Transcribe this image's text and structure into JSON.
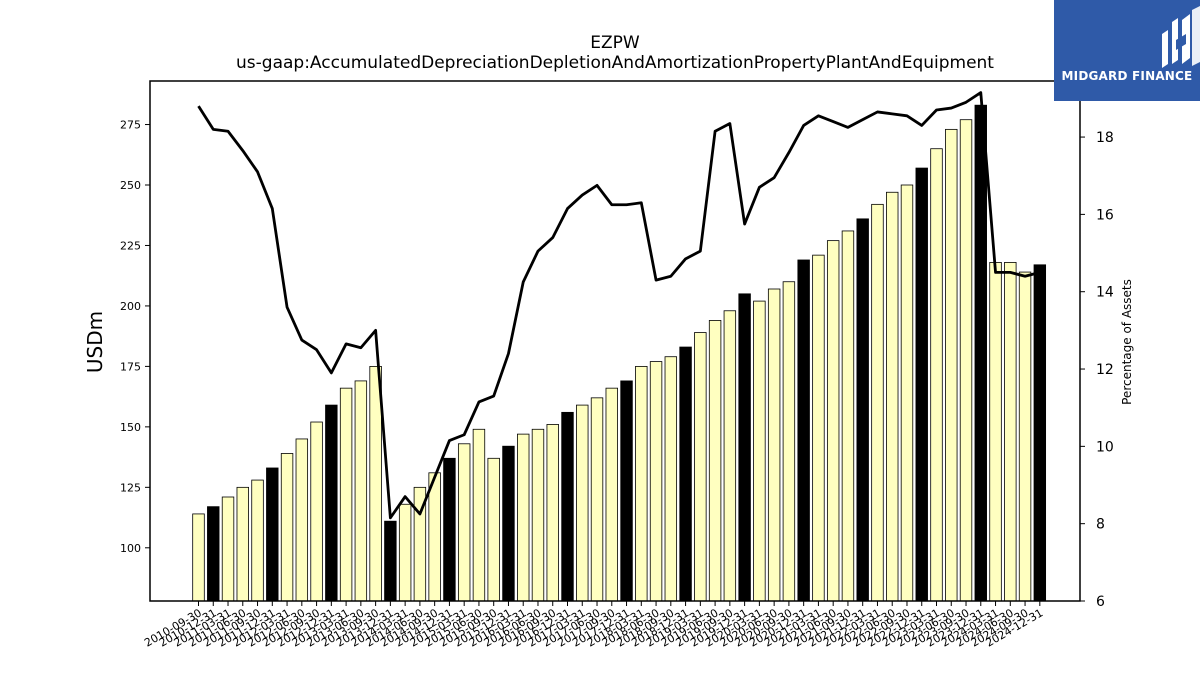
{
  "brand": {
    "name": "MIDGARD FINANCE",
    "icon": "midgard-logo-icon",
    "color": "#2f5aa8"
  },
  "chart_data": {
    "type": "bar",
    "title": "EZPW",
    "subtitle": "us-gaap:AccumulatedDepreciationDepletionAndAmortizationPropertyPlantAndEquipment",
    "ylabel": "USDm",
    "y2label": "Percentage of Assets",
    "ylim": [
      78,
      293
    ],
    "y2lim": [
      6,
      19.45
    ],
    "yticks": [
      100,
      125,
      150,
      175,
      200,
      225,
      250,
      275
    ],
    "y2ticks": [
      6,
      8,
      10,
      12,
      14,
      16,
      18
    ],
    "grid": false,
    "colors": {
      "bar": "#ffffc0",
      "bar_highlight": "#000000",
      "line": "#000000"
    },
    "categories": [
      "2010-09-30",
      "2010-12-31",
      "2011-03-31",
      "2011-06-30",
      "2011-09-30",
      "2011-12-31",
      "2012-03-31",
      "2012-06-30",
      "2012-09-30",
      "2012-12-31",
      "2013-03-31",
      "2013-06-30",
      "2013-09-30",
      "2013-12-31",
      "2014-03-31",
      "2014-06-30",
      "2014-09-30",
      "2014-12-31",
      "2015-03-31",
      "2015-06-30",
      "2015-09-30",
      "2015-12-31",
      "2016-03-31",
      "2016-06-30",
      "2016-09-30",
      "2016-12-31",
      "2017-03-31",
      "2017-06-30",
      "2017-09-30",
      "2017-12-31",
      "2018-03-31",
      "2018-06-30",
      "2018-09-30",
      "2018-12-31",
      "2019-03-31",
      "2019-06-30",
      "2019-09-30",
      "2019-12-31",
      "2020-03-31",
      "2020-06-30",
      "2020-09-30",
      "2020-12-31",
      "2021-03-31",
      "2021-06-30",
      "2021-09-30",
      "2021-12-31",
      "2022-03-31",
      "2022-06-30",
      "2022-09-30",
      "2022-12-31",
      "2023-03-31",
      "2023-06-30",
      "2023-09-30",
      "2023-12-31",
      "2024-03-31",
      "2024-06-30",
      "2024-09-30",
      "2024-12-31"
    ],
    "series": [
      {
        "type": "bar",
        "values": [
          114,
          117,
          121,
          125,
          128,
          133,
          139,
          145,
          152,
          159,
          166,
          169,
          175,
          111,
          118,
          125,
          131,
          137,
          143,
          149,
          137,
          142,
          147,
          149,
          151,
          156,
          159,
          162,
          166,
          169,
          175,
          177,
          179,
          183,
          189,
          194,
          198,
          205,
          202,
          207,
          210,
          219,
          221,
          227,
          231,
          236,
          242,
          247,
          250,
          257,
          265,
          273,
          277,
          283,
          218,
          218,
          214,
          217
        ],
        "highlight_index": [
          1,
          5,
          9,
          13,
          17,
          21,
          25,
          29,
          33,
          37,
          41,
          45,
          49,
          53,
          57
        ]
      },
      {
        "type": "line",
        "axis": "right",
        "values": [
          18.8,
          18.2,
          18.15,
          17.65,
          17.1,
          16.15,
          13.6,
          12.75,
          12.5,
          11.9,
          12.65,
          12.55,
          13.0,
          8.15,
          8.7,
          8.25,
          9.2,
          10.15,
          10.3,
          11.15,
          11.3,
          12.4,
          14.25,
          15.05,
          15.4,
          16.15,
          16.5,
          16.75,
          16.25,
          16.25,
          16.3,
          14.3,
          14.4,
          14.85,
          15.05,
          18.15,
          18.35,
          15.75,
          16.7,
          16.95,
          17.6,
          18.3,
          18.55,
          18.4,
          18.25,
          18.45,
          18.65,
          18.6,
          18.55,
          18.3,
          18.7,
          18.75,
          18.9,
          19.15,
          14.5,
          14.5,
          14.4,
          14.5
        ]
      }
    ]
  }
}
